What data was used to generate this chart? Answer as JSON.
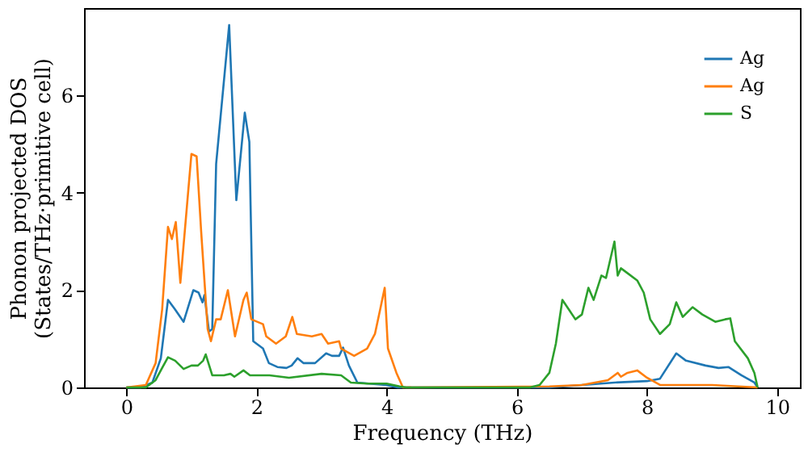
{
  "chart_data": {
    "type": "line",
    "xlabel": "Frequency (THz)",
    "ylabel": "Phonon projected DOS\n(States/THz·primitive cell)",
    "xlim": [
      -0.65,
      10.35
    ],
    "ylim": [
      0,
      7.8
    ],
    "xticks": [
      0,
      2,
      4,
      6,
      8,
      10
    ],
    "yticks": [
      0,
      2,
      4,
      6
    ],
    "grid": false,
    "legend": "top right",
    "marker": "none",
    "line_style": "solid",
    "series": [
      {
        "name": "Ag",
        "color": "#1f77b4",
        "x": [
          0,
          0.22,
          0.4,
          0.53,
          0.64,
          0.75,
          0.88,
          1.03,
          1.11,
          1.17,
          1.2,
          1.27,
          1.32,
          1.38,
          1.58,
          1.69,
          1.82,
          1.89,
          1.95,
          2.1,
          2.19,
          2.32,
          2.46,
          2.54,
          2.63,
          2.72,
          2.9,
          3.07,
          3.16,
          3.27,
          3.33,
          3.42,
          3.55,
          3.73,
          3.99,
          4.17,
          6.5,
          7.0,
          7.5,
          8.0,
          8.2,
          8.45,
          8.6,
          8.9,
          9.1,
          9.25,
          9.45,
          9.65,
          9.7
        ],
        "values": [
          0,
          0,
          0.1,
          0.6,
          1.8,
          1.6,
          1.35,
          2.0,
          1.95,
          1.75,
          1.9,
          1.15,
          1.2,
          4.6,
          7.45,
          3.85,
          5.65,
          5.05,
          0.95,
          0.8,
          0.5,
          0.42,
          0.4,
          0.45,
          0.6,
          0.5,
          0.5,
          0.7,
          0.65,
          0.65,
          0.82,
          0.45,
          0.1,
          0.08,
          0.05,
          0,
          0,
          0.05,
          0.1,
          0.13,
          0.18,
          0.7,
          0.55,
          0.45,
          0.4,
          0.42,
          0.25,
          0.1,
          0
        ]
      },
      {
        "name": "Ag",
        "color": "#ff7f0e",
        "x": [
          0,
          0.3,
          0.45,
          0.55,
          0.64,
          0.7,
          0.76,
          0.83,
          1.0,
          1.08,
          1.15,
          1.25,
          1.3,
          1.38,
          1.45,
          1.56,
          1.67,
          1.8,
          1.85,
          1.92,
          2.1,
          2.15,
          2.3,
          2.45,
          2.55,
          2.62,
          2.85,
          3.0,
          3.1,
          3.27,
          3.3,
          3.5,
          3.7,
          3.82,
          3.9,
          3.97,
          4.02,
          4.15,
          4.25,
          6.5,
          7.0,
          7.2,
          7.4,
          7.55,
          7.6,
          7.7,
          7.85,
          8.0,
          8.2,
          8.7,
          9.0,
          9.4,
          9.7
        ],
        "values": [
          0,
          0.05,
          0.5,
          1.6,
          3.3,
          3.05,
          3.4,
          2.15,
          4.8,
          4.75,
          3.2,
          1.2,
          0.95,
          1.4,
          1.4,
          2.0,
          1.05,
          1.8,
          1.95,
          1.4,
          1.3,
          1.05,
          0.9,
          1.05,
          1.45,
          1.1,
          1.05,
          1.1,
          0.9,
          0.95,
          0.8,
          0.65,
          0.8,
          1.1,
          1.6,
          2.05,
          0.8,
          0.3,
          0,
          0.02,
          0.05,
          0.1,
          0.15,
          0.3,
          0.22,
          0.3,
          0.35,
          0.2,
          0.05,
          0.05,
          0.05,
          0.02,
          0
        ]
      },
      {
        "name": "S",
        "color": "#2ca02c",
        "x": [
          0,
          0.3,
          0.45,
          0.55,
          0.64,
          0.75,
          0.88,
          1.0,
          1.1,
          1.18,
          1.22,
          1.32,
          1.5,
          1.6,
          1.66,
          1.8,
          1.9,
          2.2,
          2.5,
          3.0,
          3.3,
          3.45,
          3.7,
          4.0,
          4.2,
          4.3,
          6.2,
          6.35,
          6.5,
          6.6,
          6.7,
          6.8,
          6.9,
          7.0,
          7.1,
          7.18,
          7.3,
          7.37,
          7.5,
          7.55,
          7.6,
          7.7,
          7.85,
          7.95,
          8.05,
          8.2,
          8.35,
          8.45,
          8.55,
          8.7,
          8.85,
          9.05,
          9.2,
          9.28,
          9.35,
          9.55,
          9.65,
          9.7
        ],
        "values": [
          0,
          0,
          0.15,
          0.4,
          0.62,
          0.55,
          0.38,
          0.45,
          0.45,
          0.55,
          0.68,
          0.25,
          0.25,
          0.28,
          0.22,
          0.35,
          0.25,
          0.25,
          0.2,
          0.28,
          0.25,
          0.1,
          0.08,
          0.08,
          0.02,
          0,
          0,
          0.05,
          0.3,
          0.9,
          1.8,
          1.6,
          1.4,
          1.5,
          2.05,
          1.8,
          2.3,
          2.25,
          3.0,
          2.3,
          2.45,
          2.35,
          2.2,
          1.95,
          1.4,
          1.1,
          1.3,
          1.75,
          1.45,
          1.65,
          1.5,
          1.35,
          1.4,
          1.42,
          0.95,
          0.6,
          0.3,
          0
        ]
      }
    ]
  }
}
